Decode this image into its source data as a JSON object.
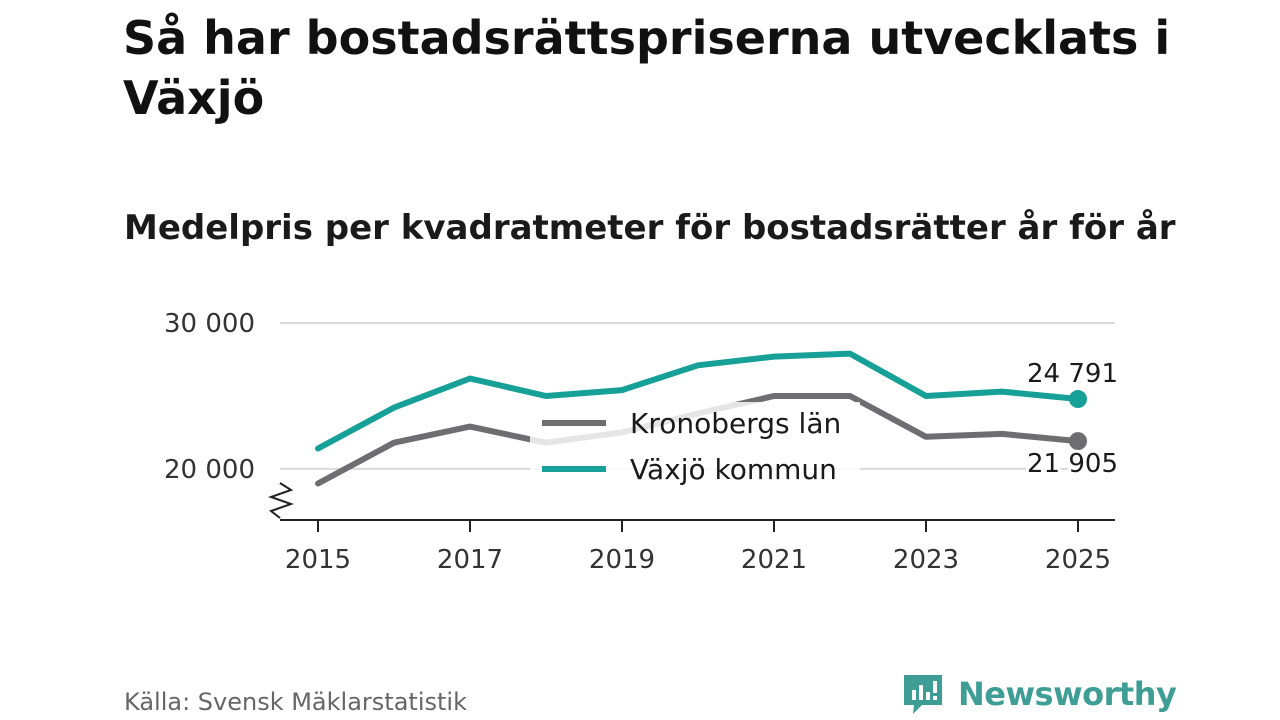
{
  "title": "Så har bostadsrättspriserna utvecklats i Växjö",
  "subtitle": "Medelpris per kvadratmeter för bostadsrätter år för år",
  "source": "Källa: Svensk Mäklarstatistik",
  "brand": {
    "name": "Newsworthy",
    "icon": "newsworthy-logo-icon",
    "color": "#3e9e95"
  },
  "chart_data": {
    "type": "line",
    "title": "Så har bostadsrättspriserna utvecklats i Växjö",
    "subtitle": "Medelpris per kvadratmeter för bostadsrätter år för år",
    "xlabel": "",
    "ylabel": "",
    "x": [
      2015,
      2016,
      2017,
      2018,
      2019,
      2020,
      2021,
      2022,
      2023,
      2024,
      2025
    ],
    "xticks": [
      2015,
      2017,
      2019,
      2021,
      2023,
      2025
    ],
    "xtick_labels": [
      "2015",
      "2017",
      "2019",
      "2021",
      "2023",
      "2025"
    ],
    "ylim": [
      16500,
      30000
    ],
    "yticks": [
      20000,
      30000
    ],
    "ytick_labels": [
      "20 000",
      "30 000"
    ],
    "axis_break": true,
    "grid": true,
    "legend_position": "center",
    "series": [
      {
        "name": "Kronobergs län",
        "color": "#6e6d72",
        "values": [
          19000,
          21800,
          22900,
          21800,
          22500,
          23800,
          25000,
          25000,
          22200,
          22400,
          21905
        ],
        "end_label": "21 905"
      },
      {
        "name": "Växjö kommun",
        "color": "#16a097",
        "values": [
          21400,
          24200,
          26200,
          25000,
          25400,
          27100,
          27700,
          27900,
          25000,
          25300,
          24791
        ],
        "end_label": "24 791"
      }
    ]
  }
}
